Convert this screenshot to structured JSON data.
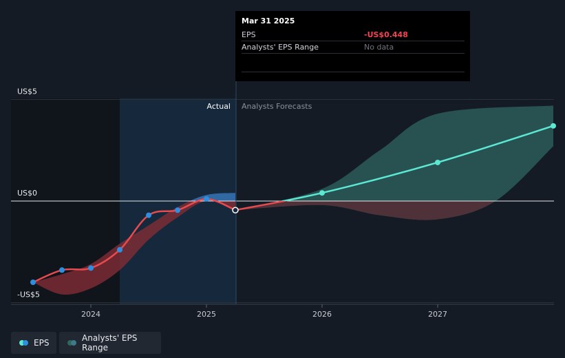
{
  "tooltip": {
    "date": "Mar 31 2025",
    "eps_label": "EPS",
    "eps_value": "-US$0.448",
    "range_label": "Analysts' EPS Range",
    "range_value": "No data"
  },
  "labels": {
    "actual": "Actual",
    "forecast": "Analysts Forecasts"
  },
  "legend": {
    "eps": "EPS",
    "range": "Analysts' EPS Range"
  },
  "colors": {
    "background": "#151b24",
    "eps_actual": "#e84a4e",
    "eps_forecast": "#5ce8d2",
    "point_actual": "#2e8fe0",
    "range_actual": "#8a2e36",
    "range_forecast": "#2e6660",
    "actual_band": "#17283a"
  },
  "chart_data": {
    "type": "line",
    "y_ticks": [
      {
        "value": 5,
        "label": "US$5"
      },
      {
        "value": 0,
        "label": "US$0"
      },
      {
        "value": -5,
        "label": "-US$5"
      }
    ],
    "x_ticks": [
      {
        "value": 2024,
        "label": "2024"
      },
      {
        "value": 2025,
        "label": "2025"
      },
      {
        "value": 2026,
        "label": "2026"
      },
      {
        "value": 2027,
        "label": "2027"
      }
    ],
    "xlim": [
      2023.25,
      2028.0
    ],
    "ylim": [
      -5.0,
      5.0
    ],
    "actual_start": 2024.25,
    "actual_end": 2025.25,
    "series": [
      {
        "name": "EPS",
        "kind": "actual",
        "points": [
          [
            2023.5,
            -4.0
          ],
          [
            2023.75,
            -3.4
          ],
          [
            2024.0,
            -3.3
          ],
          [
            2024.25,
            -2.4
          ],
          [
            2024.5,
            -0.7
          ],
          [
            2024.75,
            -0.45
          ],
          [
            2025.0,
            0.1
          ],
          [
            2025.25,
            -0.448
          ]
        ]
      },
      {
        "name": "EPS",
        "kind": "forecast",
        "points": [
          [
            2025.25,
            -0.448
          ],
          [
            2026.0,
            0.4
          ],
          [
            2027.0,
            1.9
          ],
          [
            2028.0,
            3.7
          ]
        ]
      }
    ],
    "range_actual": {
      "upper": [
        [
          2023.5,
          -4.0
        ],
        [
          2023.75,
          -3.6
        ],
        [
          2024.0,
          -3.1
        ],
        [
          2024.25,
          -2.1
        ],
        [
          2024.5,
          -1.2
        ],
        [
          2024.75,
          -0.3
        ],
        [
          2025.0,
          0.3
        ],
        [
          2025.25,
          0.4
        ]
      ],
      "lower": [
        [
          2023.5,
          -4.0
        ],
        [
          2023.75,
          -4.6
        ],
        [
          2024.0,
          -4.3
        ],
        [
          2024.25,
          -3.4
        ],
        [
          2024.5,
          -1.9
        ],
        [
          2024.75,
          -0.8
        ],
        [
          2025.0,
          0.0
        ],
        [
          2025.25,
          -0.448
        ]
      ]
    },
    "range_forecast": {
      "upper": [
        [
          2025.25,
          -0.448
        ],
        [
          2026.0,
          0.6
        ],
        [
          2026.5,
          2.5
        ],
        [
          2027.0,
          4.3
        ],
        [
          2028.0,
          4.7
        ]
      ],
      "lower": [
        [
          2025.25,
          -0.448
        ],
        [
          2026.0,
          -0.2
        ],
        [
          2026.5,
          -0.7
        ],
        [
          2027.0,
          -0.9
        ],
        [
          2027.5,
          0.0
        ],
        [
          2028.0,
          2.7
        ]
      ]
    }
  }
}
